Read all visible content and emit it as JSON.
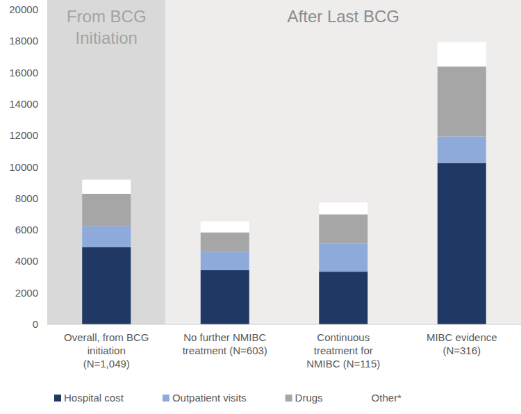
{
  "chart_data": {
    "type": "bar",
    "stacked": true,
    "grid": false,
    "legend": "bottom",
    "annotations": [
      "From BCG Initiation",
      "After Last BCG"
    ],
    "categories": [
      "Overall, from BCG initiation (N=1,049)",
      "No further NMIBC treatment (N=603)",
      "Continuous treatment for NMIBC (N=115)",
      "MIBC evidence (N=316)"
    ],
    "series": [
      {
        "name": "Hospital cost",
        "color": "#1f3864",
        "values": [
          4900,
          3450,
          3350,
          10250
        ]
      },
      {
        "name": "Outpatient visits",
        "color": "#8eaadb",
        "values": [
          1350,
          1150,
          1800,
          1700
        ]
      },
      {
        "name": "Drugs",
        "color": "#a6a6a6",
        "values": [
          2050,
          1250,
          1850,
          4450
        ]
      },
      {
        "name": "Other*",
        "color": "#ffffff",
        "values": [
          900,
          700,
          750,
          1550
        ]
      }
    ],
    "ylim": [
      0,
      20000
    ],
    "yticks": [
      0,
      2000,
      4000,
      6000,
      8000,
      10000,
      12000,
      14000,
      16000,
      18000,
      20000
    ]
  }
}
